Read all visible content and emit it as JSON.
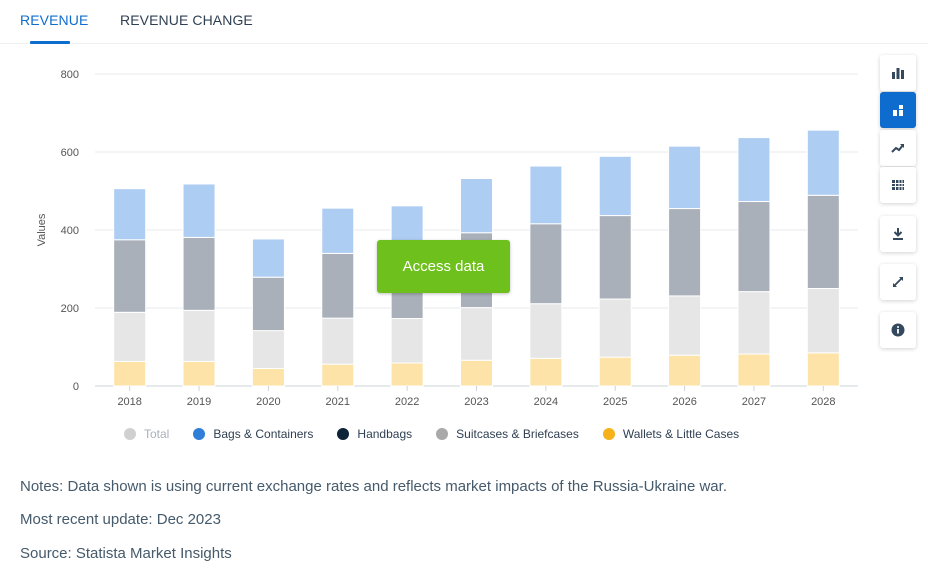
{
  "tabs": [
    {
      "label": "REVENUE",
      "active": true
    },
    {
      "label": "REVENUE CHANGE",
      "active": false
    }
  ],
  "access_button": "Access data",
  "toolbar": [
    {
      "icon": "bar-chart-icon",
      "active": false
    },
    {
      "icon": "stacked-bar-chart-icon",
      "active": true
    },
    {
      "icon": "trend-line-icon",
      "active": false
    },
    {
      "icon": "table-view-icon",
      "active": false
    },
    {
      "icon": "download-icon",
      "active": false
    },
    {
      "icon": "expand-icon",
      "active": false
    },
    {
      "icon": "info-icon",
      "active": false
    }
  ],
  "legend": [
    {
      "label": "Total",
      "color": "#d0d0d0",
      "muted": true
    },
    {
      "label": "Bags & Containers",
      "color": "#2f7ed8",
      "muted": false
    },
    {
      "label": "Handbags",
      "color": "#0d233a",
      "muted": false
    },
    {
      "label": "Suitcases & Briefcases",
      "color": "#a9a9a9",
      "muted": false
    },
    {
      "label": "Wallets & Little Cases",
      "color": "#f5b21a",
      "muted": false
    }
  ],
  "notes": {
    "line1": "Notes: Data shown is using current exchange rates and reflects market impacts of the Russia-Ukraine war.",
    "line2": "Most recent update: Dec 2023",
    "line3": "Source: Statista Market Insights"
  },
  "chart_data": {
    "type": "bar",
    "stacked": true,
    "ylabel": "Values",
    "xlabel": "",
    "ylim": [
      0,
      800
    ],
    "yticks": [
      0,
      200,
      400,
      600,
      800
    ],
    "grid": true,
    "categories": [
      "2018",
      "2019",
      "2020",
      "2021",
      "2022",
      "2023",
      "2024",
      "2025",
      "2026",
      "2027",
      "2028"
    ],
    "series": [
      {
        "name": "Wallets & Little Cases",
        "color": "#fde3a7",
        "values": [
          63,
          63,
          45,
          56,
          59,
          66,
          71,
          74,
          79,
          82,
          85
        ]
      },
      {
        "name": "Handbags",
        "color": "#e6e6e6",
        "values": [
          126,
          131,
          97,
          118,
          114,
          135,
          140,
          149,
          152,
          160,
          165
        ]
      },
      {
        "name": "Suitcases & Briefcases",
        "color": "#a9b0b9",
        "values": [
          186,
          187,
          137,
          166,
          148,
          192,
          205,
          214,
          224,
          231,
          239
        ]
      },
      {
        "name": "Bags & Containers",
        "color": "#aecdf2",
        "values": [
          131,
          137,
          98,
          116,
          141,
          139,
          148,
          152,
          160,
          164,
          167
        ]
      }
    ]
  }
}
